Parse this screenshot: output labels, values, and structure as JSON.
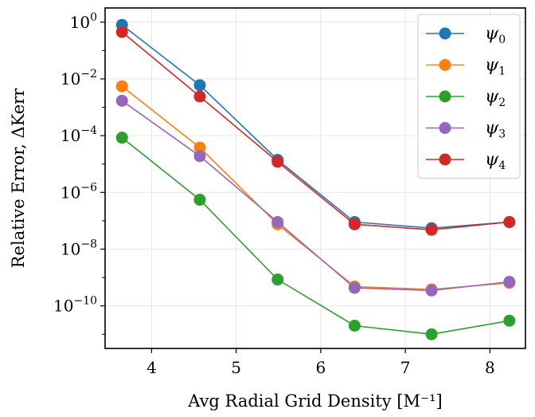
{
  "chart_data": {
    "type": "line",
    "xlabel": "Avg Radial Grid Density [M⁻¹]",
    "ylabel": "Relative Error, ΔKerr",
    "y_scale": "log",
    "xlim": [
      3.45,
      8.42
    ],
    "ylim_log10": [
      -11.5,
      0.5
    ],
    "x": [
      3.65,
      4.57,
      5.49,
      6.4,
      7.31,
      8.23
    ],
    "x_ticks": [
      4,
      5,
      6,
      7,
      8
    ],
    "x_tick_labels": [
      "4",
      "5",
      "6",
      "7",
      "8"
    ],
    "y_ticks_log10": [
      0,
      -2,
      -4,
      -6,
      -8,
      -10
    ],
    "y_tick_labels": [
      {
        "base": "10",
        "exp": "0"
      },
      {
        "base": "10",
        "exp": "−2"
      },
      {
        "base": "10",
        "exp": "−4"
      },
      {
        "base": "10",
        "exp": "−6"
      },
      {
        "base": "10",
        "exp": "−8"
      },
      {
        "base": "10",
        "exp": "−10"
      }
    ],
    "grid": true,
    "legend_position": "top-right",
    "series": [
      {
        "name": "ψ",
        "sub": "0",
        "color": "#1f77b4",
        "values": [
          0.8,
          0.006,
          1.4e-05,
          9e-08,
          5.5e-08,
          9e-08
        ]
      },
      {
        "name": "ψ",
        "sub": "1",
        "color": "#ff7f0e",
        "values": [
          0.0055,
          3.8e-05,
          7.5e-08,
          4.8e-10,
          3.8e-10,
          6.5e-10
        ]
      },
      {
        "name": "ψ",
        "sub": "2",
        "color": "#2ca02c",
        "values": [
          8.5e-05,
          5.5e-07,
          8.5e-10,
          2e-11,
          1e-11,
          3e-11
        ]
      },
      {
        "name": "ψ",
        "sub": "3",
        "color": "#9467bd",
        "values": [
          0.0017,
          1.9e-05,
          9e-08,
          4.3e-10,
          3.5e-10,
          7e-10
        ]
      },
      {
        "name": "ψ",
        "sub": "4",
        "color": "#d62728",
        "values": [
          0.45,
          0.0024,
          1.2e-05,
          7.5e-08,
          4.8e-08,
          9e-08
        ]
      }
    ]
  }
}
